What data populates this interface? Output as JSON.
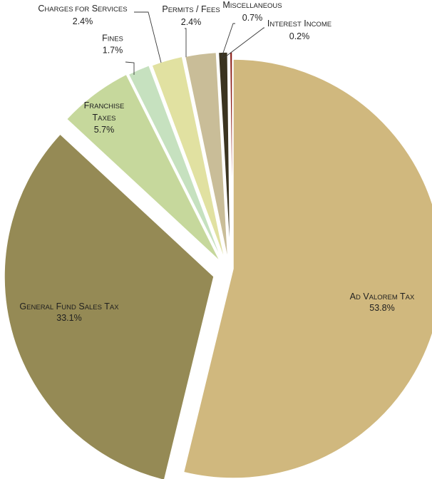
{
  "chart_data": {
    "type": "pie",
    "title": "",
    "slices": [
      {
        "name": "Ad Valorem Tax",
        "label_lines": [
          [
            [
              "A",
              "D"
            ],
            [
              " V",
              "ALOREM"
            ],
            [
              " T",
              "AX"
            ]
          ]
        ],
        "pct_label": "53.8%",
        "value": 53.8,
        "color": "#d0b87e"
      },
      {
        "name": "General Fund Sales Tax",
        "label_lines": [
          [
            [
              "G",
              "ENERAL"
            ],
            [
              " F",
              "UND"
            ],
            [
              " S",
              "ALES"
            ],
            [
              " T",
              "AX"
            ]
          ]
        ],
        "pct_label": "33.1%",
        "value": 33.1,
        "color": "#958a55"
      },
      {
        "name": "Franchise Taxes",
        "label_lines": [
          [
            [
              "F",
              "RANCHISE"
            ]
          ],
          [
            [
              "T",
              "AXES"
            ]
          ]
        ],
        "pct_label": "5.7%",
        "value": 5.7,
        "color": "#c6d89c"
      },
      {
        "name": "Fines",
        "label_lines": [
          [
            [
              "F",
              "INES"
            ]
          ]
        ],
        "pct_label": "1.7%",
        "value": 1.7,
        "color": "#c6e1bf"
      },
      {
        "name": "Charges for Services",
        "label_lines": [
          [
            [
              "C",
              "HARGES FOR"
            ],
            [
              " S",
              "ERVICES"
            ]
          ]
        ],
        "pct_label": "2.4%",
        "value": 2.4,
        "color": "#e1e1a1"
      },
      {
        "name": "Permits / Fees",
        "label_lines": [
          [
            [
              "P",
              "ERMITS"
            ],
            [
              " / F",
              "EES"
            ]
          ]
        ],
        "pct_label": "2.4%",
        "value": 2.4,
        "color": "#c9bd98"
      },
      {
        "name": "Miscellaneous",
        "label_lines": [
          [
            [
              "M",
              "ISCELLANEOUS"
            ]
          ]
        ],
        "pct_label": "0.7%",
        "value": 0.7,
        "color": "#3b3420"
      },
      {
        "name": "Interest Income",
        "label_lines": [
          [
            [
              "I",
              "NTEREST"
            ],
            [
              " I",
              "NCOME"
            ]
          ]
        ],
        "pct_label": "0.2%",
        "value": 0.2,
        "color": "#8c1d16"
      }
    ]
  }
}
